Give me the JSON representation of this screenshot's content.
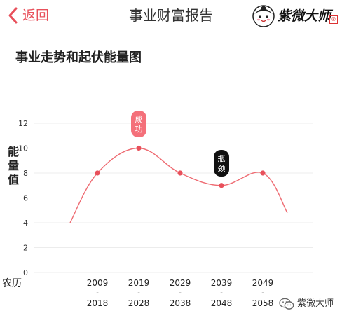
{
  "header": {
    "back_label": "返回",
    "title": "事业财富报告",
    "logo_text": "紫微大师",
    "logo_seal": "®"
  },
  "section": {
    "title": "事业走势和起伏能量图"
  },
  "colors": {
    "accent": "#e8505b",
    "line": "#ee6b72",
    "badge_dark": "#111111"
  },
  "chart_data": {
    "type": "line",
    "ylabel": "能量值",
    "xlabel": "农历",
    "ylim": [
      0,
      12
    ],
    "yticks": [
      0,
      2,
      4,
      6,
      8,
      10,
      12
    ],
    "categories": [
      {
        "start": "2009",
        "sep": "-",
        "end": "2018"
      },
      {
        "start": "2019",
        "sep": "-",
        "end": "2028"
      },
      {
        "start": "2029",
        "sep": "-",
        "end": "2038"
      },
      {
        "start": "2039",
        "sep": "-",
        "end": "2048"
      },
      {
        "start": "2049",
        "sep": "-",
        "end": "2058"
      }
    ],
    "values": [
      8,
      10,
      8,
      7,
      8
    ],
    "line_start_value": 4,
    "line_end_value": 4.8,
    "annotations": [
      {
        "category_index": 1,
        "text": "成功",
        "style": "light"
      },
      {
        "category_index": 3,
        "text": "瓶颈",
        "style": "dark"
      }
    ],
    "grid": true
  },
  "watermark": {
    "icon": "wechat-icon",
    "text": "紫微大师"
  }
}
